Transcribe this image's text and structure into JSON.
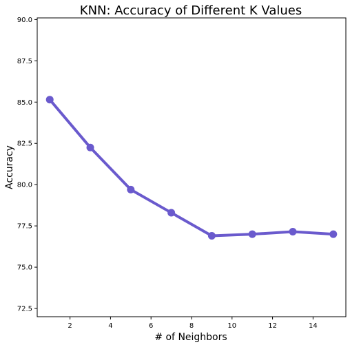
{
  "chart_data": {
    "type": "line",
    "title": "KNN: Accuracy of Different K Values",
    "xlabel": "# of Neighbors",
    "ylabel": "Accuracy",
    "x": [
      1,
      3,
      5,
      7,
      9,
      11,
      13,
      15
    ],
    "series": [
      {
        "values": [
          85.15,
          82.25,
          79.7,
          78.3,
          76.9,
          77.0,
          77.15,
          77.0
        ]
      }
    ],
    "xlim": [
      0.38,
      15.62
    ],
    "ylim": [
      72.0,
      90.1
    ],
    "xticks": [
      2,
      4,
      6,
      8,
      10,
      12,
      14
    ],
    "xtick_labels": [
      "2",
      "4",
      "6",
      "8",
      "10",
      "12",
      "14"
    ],
    "yticks": [
      72.5,
      75.0,
      77.5,
      80.0,
      82.5,
      85.0,
      87.5,
      90.0
    ],
    "ytick_labels": [
      "72.5",
      "75.0",
      "77.5",
      "80.0",
      "82.5",
      "85.0",
      "87.5",
      "90.0"
    ],
    "grid": false,
    "line_color": "#6a5acd"
  }
}
